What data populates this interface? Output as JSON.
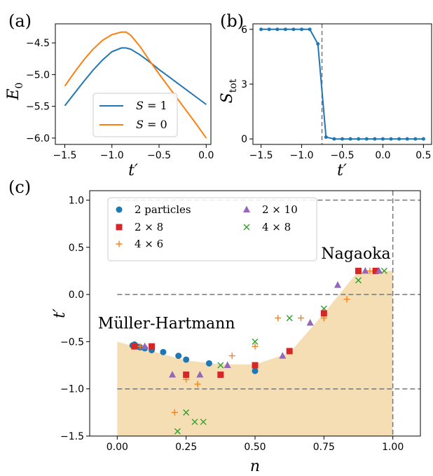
{
  "chart_data": [
    {
      "panel_label": "(a)",
      "type": "line",
      "xlabel": "t′",
      "ylabel": "E",
      "ylabel_sub": "0",
      "xlim": [
        -1.6,
        0.05
      ],
      "ylim": [
        -6.1,
        -4.2
      ],
      "xticks": [
        -1.5,
        -1.0,
        -0.5,
        0.0
      ],
      "xtick_labels": [
        "−1.5",
        "−1.0",
        "−0.5",
        "0.0"
      ],
      "yticks": [
        -6.0,
        -5.5,
        -5.0,
        -4.5
      ],
      "ytick_labels": [
        "−6.0",
        "−5.5",
        "−5.0",
        "−4.5"
      ],
      "legend_position": "lower-center",
      "series": [
        {
          "legend_prefix": "S",
          "legend_value": " = 1",
          "color": "#1f77b4",
          "x": [
            -1.5,
            -1.4,
            -1.3,
            -1.2,
            -1.1,
            -1.0,
            -0.9,
            -0.85,
            -0.8,
            -0.7,
            -0.6,
            -0.5,
            -0.4,
            -0.3,
            -0.2,
            -0.1,
            0.0
          ],
          "y": [
            -5.49,
            -5.3,
            -5.11,
            -4.93,
            -4.77,
            -4.64,
            -4.58,
            -4.58,
            -4.6,
            -4.69,
            -4.8,
            -4.92,
            -5.03,
            -5.14,
            -5.25,
            -5.36,
            -5.47
          ]
        },
        {
          "legend_prefix": "S",
          "legend_value": " = 0",
          "color": "#ff7f0e",
          "x": [
            -1.5,
            -1.4,
            -1.3,
            -1.2,
            -1.1,
            -1.0,
            -0.9,
            -0.85,
            -0.8,
            -0.7,
            -0.6,
            -0.5,
            -0.4,
            -0.3,
            -0.2,
            -0.1,
            0.0
          ],
          "y": [
            -5.18,
            -4.97,
            -4.77,
            -4.6,
            -4.46,
            -4.37,
            -4.33,
            -4.33,
            -4.38,
            -4.56,
            -4.78,
            -4.99,
            -5.19,
            -5.39,
            -5.59,
            -5.79,
            -6.0
          ]
        }
      ]
    },
    {
      "panel_label": "(b)",
      "type": "line",
      "xlabel": "t′",
      "ylabel": "S",
      "ylabel_sub": "tot",
      "xlim": [
        -1.6,
        0.6
      ],
      "ylim": [
        -0.3,
        6.3
      ],
      "xticks": [
        -1.5,
        -1.0,
        -0.5,
        0.0,
        0.5
      ],
      "xtick_labels": [
        "−1.5",
        "−1.0",
        "−0.5",
        "0.0",
        "0.5"
      ],
      "yticks": [
        0,
        3,
        6
      ],
      "ytick_labels": [
        "0",
        "3",
        "6"
      ],
      "vline_x": -0.75,
      "series": [
        {
          "color": "#1f77b4",
          "x": [
            -1.5,
            -1.4,
            -1.3,
            -1.2,
            -1.1,
            -1.0,
            -0.9,
            -0.8,
            -0.7,
            -0.6,
            -0.5,
            -0.4,
            -0.3,
            -0.2,
            -0.1,
            0.0,
            0.1,
            0.2,
            0.3,
            0.4,
            0.5
          ],
          "y": [
            6,
            6,
            6,
            6,
            6,
            6,
            6,
            5.2,
            0.1,
            0,
            0,
            0,
            0,
            0,
            0,
            0,
            0,
            0,
            0,
            0,
            0
          ]
        }
      ]
    },
    {
      "panel_label": "(c)",
      "type": "scatter",
      "xlabel": "n",
      "ylabel": "t′",
      "xlim": [
        -0.1,
        1.1
      ],
      "ylim": [
        -1.5,
        1.1
      ],
      "xticks": [
        0.0,
        0.25,
        0.5,
        0.75,
        1.0
      ],
      "xtick_labels": [
        "0.00",
        "0.25",
        "0.50",
        "0.75",
        "1.00"
      ],
      "yticks": [
        -1.5,
        -1.0,
        -0.5,
        0.0,
        0.5,
        1.0
      ],
      "ytick_labels": [
        "−1.5",
        "−1.0",
        "−0.5",
        "0.0",
        "0.5",
        "1.0"
      ],
      "hlines": [
        1.0,
        0.0,
        -1.0
      ],
      "vline_x": 1.0,
      "annotations": [
        {
          "text": "Nagaoka",
          "x": 0.74,
          "y": 0.38
        },
        {
          "text": "Müller-Hartmann",
          "x": -0.07,
          "y": -0.36
        }
      ],
      "region": {
        "color": "#f5deb3",
        "upper_x": [
          0.0,
          0.0625,
          0.125,
          0.25,
          0.375,
          0.5,
          0.625,
          0.75,
          0.875,
          1.0
        ],
        "upper_y": [
          -0.5,
          -0.55,
          -0.6,
          -0.7,
          -0.74,
          -0.74,
          -0.62,
          -0.2,
          0.25,
          0.25
        ],
        "lower_y": -1.5
      },
      "legend_position": "top-left",
      "series": [
        {
          "name": "2 particles",
          "marker": "circle",
          "color": "#1f77b4",
          "x": [
            0.0556,
            0.0625,
            0.0714,
            0.0833,
            0.1,
            0.125,
            0.1667,
            0.2222,
            0.25,
            0.3333,
            0.5
          ],
          "y": [
            -0.54,
            -0.53,
            -0.55,
            -0.56,
            -0.57,
            -0.59,
            -0.61,
            -0.65,
            -0.69,
            -0.73,
            -0.81
          ]
        },
        {
          "name": "2 × 8",
          "marker": "square",
          "color": "#d62728",
          "x": [
            0.0625,
            0.125,
            0.25,
            0.375,
            0.5,
            0.625,
            0.75,
            0.875,
            0.9375
          ],
          "y": [
            -0.55,
            -0.55,
            -0.85,
            -0.85,
            -0.75,
            -0.6,
            -0.2,
            0.25,
            0.25
          ]
        },
        {
          "name": "4 × 6",
          "marker": "plus",
          "color": "#ff7f0e",
          "x": [
            0.0833,
            0.2083,
            0.25,
            0.2917,
            0.4167,
            0.5,
            0.5833,
            0.6667,
            0.75,
            0.8333,
            0.9167
          ],
          "y": [
            -0.55,
            -1.25,
            -0.9,
            -0.95,
            -0.65,
            -0.55,
            -0.25,
            -0.25,
            -0.25,
            -0.05,
            0.25
          ]
        },
        {
          "name": "2 × 10",
          "marker": "triangle",
          "color": "#9467bd",
          "x": [
            0.1,
            0.2,
            0.3,
            0.4,
            0.6,
            0.7,
            0.8,
            0.9,
            0.95
          ],
          "y": [
            -0.55,
            -0.85,
            -0.85,
            -0.75,
            -0.65,
            -0.3,
            0.1,
            0.25,
            0.25
          ]
        },
        {
          "name": "4 × 8",
          "marker": "x",
          "color": "#2ca02c",
          "x": [
            0.0625,
            0.2188,
            0.25,
            0.2813,
            0.3125,
            0.375,
            0.5,
            0.625,
            0.75,
            0.875,
            0.9688
          ],
          "y": [
            -0.55,
            -1.45,
            -1.25,
            -1.35,
            -1.35,
            -0.75,
            -0.5,
            -0.25,
            -0.15,
            0.15,
            0.25
          ]
        }
      ]
    }
  ]
}
